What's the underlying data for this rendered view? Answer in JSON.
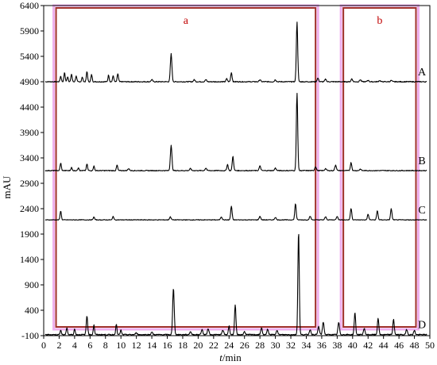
{
  "chart_data": {
    "type": "line",
    "title": "",
    "xlabel_italic": "t",
    "xlabel_rest": "/min",
    "ylabel": "mAU",
    "xlim": [
      0,
      50
    ],
    "ylim": [
      -100,
      6400
    ],
    "x_ticks": [
      0,
      2,
      4,
      6,
      8,
      10,
      12,
      14,
      16,
      18,
      20,
      22,
      24,
      26,
      28,
      30,
      32,
      34,
      36,
      38,
      40,
      42,
      44,
      46,
      48,
      50
    ],
    "y_ticks": [
      -100,
      400,
      900,
      1400,
      1900,
      2400,
      2900,
      3400,
      3900,
      4400,
      4900,
      5400,
      5900,
      6400
    ],
    "grid": false,
    "colors": {
      "trace": "#000000",
      "box": "#a0302a",
      "highlight": "#e070e0"
    },
    "regions": [
      {
        "label": "a",
        "x": [
          1.6,
          35.2
        ]
      },
      {
        "label": "b",
        "x": [
          38.8,
          48.2
        ]
      }
    ],
    "series": [
      {
        "name": "A",
        "baseline": 4900,
        "noise": 18,
        "peaks": [
          [
            2.2,
            110,
            0.08
          ],
          [
            2.7,
            180,
            0.08
          ],
          [
            3.1,
            100,
            0.08
          ],
          [
            3.6,
            150,
            0.08
          ],
          [
            4.2,
            110,
            0.08
          ],
          [
            5.0,
            90,
            0.08
          ],
          [
            5.6,
            200,
            0.08
          ],
          [
            6.2,
            140,
            0.08
          ],
          [
            8.4,
            130,
            0.08
          ],
          [
            9.0,
            120,
            0.08
          ],
          [
            9.6,
            160,
            0.08
          ],
          [
            14.0,
            40,
            0.1
          ],
          [
            16.5,
            550,
            0.1
          ],
          [
            19.5,
            40,
            0.1
          ],
          [
            21.0,
            40,
            0.1
          ],
          [
            23.7,
            60,
            0.09
          ],
          [
            24.3,
            180,
            0.09
          ],
          [
            28.0,
            40,
            0.1
          ],
          [
            30.0,
            40,
            0.1
          ],
          [
            32.8,
            1170,
            0.09
          ],
          [
            35.5,
            70,
            0.1
          ],
          [
            36.5,
            50,
            0.1
          ],
          [
            39.9,
            60,
            0.09
          ],
          [
            41.0,
            40,
            0.1
          ],
          [
            42.0,
            30,
            0.1
          ],
          [
            43.5,
            25,
            0.1
          ],
          [
            45.0,
            25,
            0.1
          ]
        ]
      },
      {
        "name": "B",
        "baseline": 3150,
        "noise": 15,
        "peaks": [
          [
            2.2,
            150,
            0.08
          ],
          [
            3.6,
            60,
            0.08
          ],
          [
            4.5,
            60,
            0.08
          ],
          [
            5.6,
            130,
            0.08
          ],
          [
            6.5,
            90,
            0.08
          ],
          [
            9.5,
            110,
            0.08
          ],
          [
            11.0,
            40,
            0.1
          ],
          [
            16.5,
            500,
            0.1
          ],
          [
            19.0,
            40,
            0.1
          ],
          [
            21.0,
            50,
            0.1
          ],
          [
            23.8,
            120,
            0.09
          ],
          [
            24.5,
            280,
            0.09
          ],
          [
            28.0,
            90,
            0.1
          ],
          [
            30.0,
            50,
            0.1
          ],
          [
            32.8,
            1520,
            0.09
          ],
          [
            35.2,
            80,
            0.1
          ],
          [
            36.5,
            40,
            0.1
          ],
          [
            37.8,
            110,
            0.1
          ],
          [
            39.8,
            160,
            0.09
          ],
          [
            41.0,
            30,
            0.1
          ]
        ]
      },
      {
        "name": "C",
        "baseline": 2180,
        "noise": 12,
        "peaks": [
          [
            2.2,
            180,
            0.08
          ],
          [
            6.5,
            60,
            0.08
          ],
          [
            9.0,
            70,
            0.08
          ],
          [
            16.4,
            60,
            0.1
          ],
          [
            23.0,
            60,
            0.1
          ],
          [
            24.3,
            270,
            0.09
          ],
          [
            28.0,
            70,
            0.1
          ],
          [
            30.0,
            50,
            0.1
          ],
          [
            32.6,
            320,
            0.09
          ],
          [
            34.5,
            70,
            0.1
          ],
          [
            36.5,
            60,
            0.1
          ],
          [
            38.0,
            70,
            0.1
          ],
          [
            39.8,
            230,
            0.09
          ],
          [
            42.0,
            110,
            0.09
          ],
          [
            43.2,
            180,
            0.09
          ],
          [
            45.0,
            220,
            0.09
          ]
        ]
      },
      {
        "name": "D",
        "baseline": -80,
        "noise": 20,
        "peaks": [
          [
            2.2,
            90,
            0.08
          ],
          [
            3.0,
            140,
            0.08
          ],
          [
            4.0,
            110,
            0.08
          ],
          [
            5.6,
            370,
            0.09
          ],
          [
            6.5,
            190,
            0.08
          ],
          [
            9.4,
            210,
            0.08
          ],
          [
            10.0,
            90,
            0.08
          ],
          [
            12.0,
            40,
            0.1
          ],
          [
            14.0,
            50,
            0.1
          ],
          [
            16.8,
            920,
            0.1
          ],
          [
            19.0,
            60,
            0.1
          ],
          [
            20.5,
            100,
            0.1
          ],
          [
            21.3,
            120,
            0.1
          ],
          [
            23.2,
            90,
            0.1
          ],
          [
            24.0,
            170,
            0.09
          ],
          [
            24.8,
            580,
            0.09
          ],
          [
            26.0,
            60,
            0.1
          ],
          [
            28.2,
            140,
            0.09
          ],
          [
            29.0,
            110,
            0.09
          ],
          [
            30.2,
            90,
            0.1
          ],
          [
            33.0,
            2040,
            0.09
          ],
          [
            34.5,
            100,
            0.1
          ],
          [
            35.6,
            160,
            0.1
          ],
          [
            36.2,
            250,
            0.1
          ],
          [
            38.2,
            240,
            0.1
          ],
          [
            40.3,
            430,
            0.09
          ],
          [
            41.5,
            120,
            0.1
          ],
          [
            43.3,
            330,
            0.09
          ],
          [
            45.3,
            310,
            0.09
          ],
          [
            47.0,
            100,
            0.1
          ],
          [
            48.0,
            80,
            0.1
          ]
        ]
      }
    ]
  }
}
